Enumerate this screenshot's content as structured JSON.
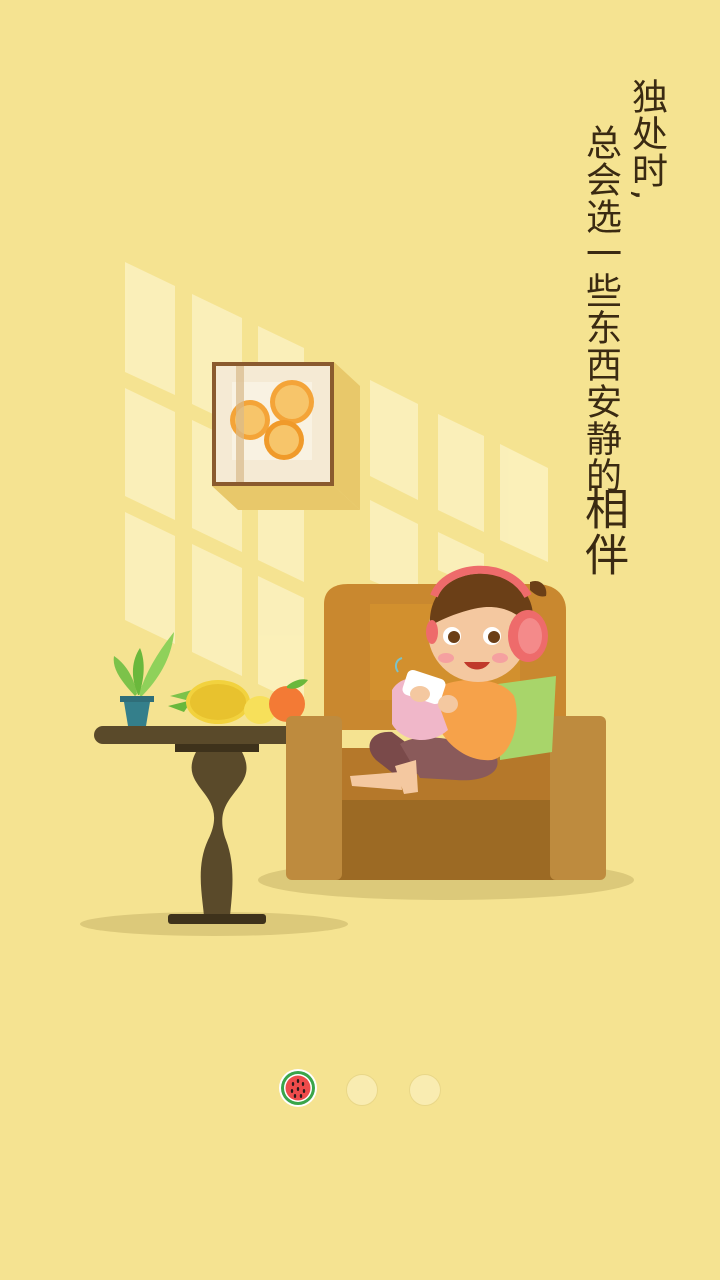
{
  "caption": {
    "line_1": "独处时,",
    "line_2": "总会选一些东西安静的",
    "emphasis": "相伴"
  },
  "pager": {
    "page_count": 3,
    "current_page": 1,
    "dots": [
      {
        "icon": "watermelon-icon",
        "state": "active"
      },
      {
        "icon": "dot-icon",
        "state": "inactive"
      },
      {
        "icon": "dot-icon",
        "state": "inactive"
      }
    ]
  },
  "colors": {
    "background": "#f5e391",
    "text": "#3a2a12",
    "sofa": "#b07a2c",
    "headphones": "#ee6b6b",
    "table": "#5a4a2a",
    "plant": "#7cc24a"
  }
}
